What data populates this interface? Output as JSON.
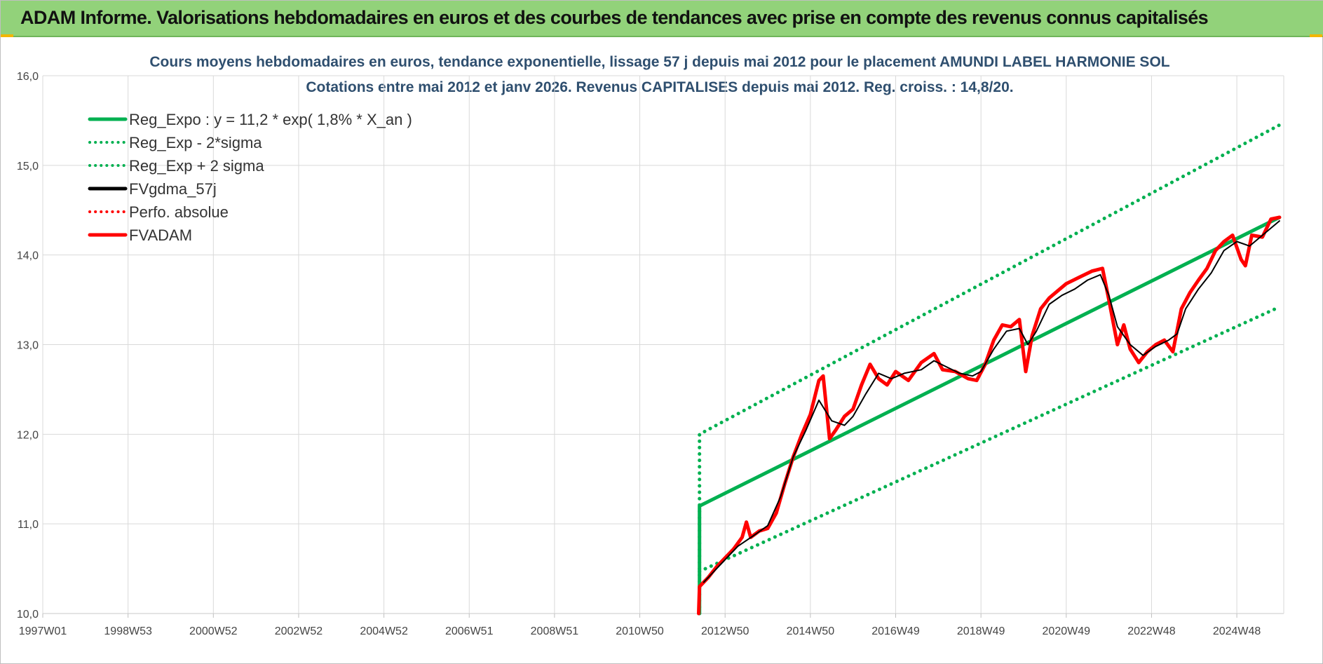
{
  "banner": {
    "title": "ADAM Informe. Valorisations hebdomadaires en euros et des courbes de tendances avec prise en compte des revenus connus capitalisés",
    "color": "#92d27a"
  },
  "chart_data": {
    "type": "line",
    "title": "Cours moyens hebdomadaires en euros, tendance exponentielle, lissage 57 j depuis mai 2012 pour le placement AMUNDI LABEL HARMONIE SOL",
    "subtitle": "Cotations entre mai 2012 et janv 2026. Revenus CAPITALISES depuis mai 2012. Reg. croiss. : 14,8/20.",
    "xlabel": "",
    "ylabel": "",
    "x_tick_labels": [
      "1997W01",
      "1998W53",
      "2000W52",
      "2002W52",
      "2004W52",
      "2006W51",
      "2008W51",
      "2010W50",
      "2012W50",
      "2014W50",
      "2016W49",
      "2018W49",
      "2020W49",
      "2022W48",
      "2024W48"
    ],
    "x_tick_years": [
      1997.0,
      1999.0,
      2001.0,
      2003.0,
      2005.0,
      2007.0,
      2009.0,
      2011.0,
      2013.0,
      2015.0,
      2017.0,
      2019.0,
      2021.0,
      2023.0,
      2025.0
    ],
    "xlim": [
      1997.0,
      2026.1
    ],
    "ylim": [
      10.0,
      16.0
    ],
    "y_ticks": [
      10.0,
      11.0,
      12.0,
      13.0,
      14.0,
      15.0,
      16.0
    ],
    "y_tick_labels": [
      "10,0",
      "11,0",
      "12,0",
      "13,0",
      "14,0",
      "15,0",
      "16,0"
    ],
    "grid": true,
    "legend_position": "top-left",
    "series": [
      {
        "name": "Reg_Expo : y = 11,2 * exp( 1,8% *  X_an )",
        "color": "#00b050",
        "style": "solid",
        "points": [
          [
            2012.4,
            10.0
          ],
          [
            2012.4,
            11.2
          ],
          [
            2026.0,
            14.42
          ]
        ]
      },
      {
        "name": "Reg_Exp - 2*sigma",
        "color": "#00b050",
        "style": "dotted",
        "points": [
          [
            2012.4,
            10.47
          ],
          [
            2026.0,
            13.42
          ]
        ]
      },
      {
        "name": "Reg_Exp + 2 sigma",
        "color": "#00b050",
        "style": "dotted",
        "points": [
          [
            2012.4,
            10.0
          ],
          [
            2012.4,
            12.0
          ],
          [
            2026.0,
            15.45
          ]
        ]
      },
      {
        "name": "FVgdma_57j",
        "color": "#000000",
        "style": "solid",
        "points": [
          [
            2012.5,
            10.35
          ],
          [
            2012.9,
            10.55
          ],
          [
            2013.3,
            10.75
          ],
          [
            2013.7,
            10.88
          ],
          [
            2014.0,
            10.98
          ],
          [
            2014.3,
            11.3
          ],
          [
            2014.6,
            11.75
          ],
          [
            2014.9,
            12.05
          ],
          [
            2015.2,
            12.38
          ],
          [
            2015.5,
            12.15
          ],
          [
            2015.8,
            12.1
          ],
          [
            2016.0,
            12.2
          ],
          [
            2016.3,
            12.45
          ],
          [
            2016.6,
            12.68
          ],
          [
            2016.9,
            12.62
          ],
          [
            2017.2,
            12.68
          ],
          [
            2017.6,
            12.72
          ],
          [
            2017.9,
            12.82
          ],
          [
            2018.2,
            12.75
          ],
          [
            2018.5,
            12.68
          ],
          [
            2018.8,
            12.65
          ],
          [
            2019.0,
            12.7
          ],
          [
            2019.3,
            12.95
          ],
          [
            2019.6,
            13.15
          ],
          [
            2019.9,
            13.18
          ],
          [
            2020.1,
            13.0
          ],
          [
            2020.3,
            13.15
          ],
          [
            2020.6,
            13.45
          ],
          [
            2020.9,
            13.55
          ],
          [
            2021.2,
            13.62
          ],
          [
            2021.5,
            13.72
          ],
          [
            2021.8,
            13.78
          ],
          [
            2022.0,
            13.55
          ],
          [
            2022.2,
            13.2
          ],
          [
            2022.5,
            13.0
          ],
          [
            2022.8,
            12.88
          ],
          [
            2023.1,
            12.98
          ],
          [
            2023.4,
            13.05
          ],
          [
            2023.6,
            13.12
          ],
          [
            2023.8,
            13.4
          ],
          [
            2024.1,
            13.62
          ],
          [
            2024.4,
            13.8
          ],
          [
            2024.7,
            14.05
          ],
          [
            2025.0,
            14.15
          ],
          [
            2025.3,
            14.1
          ],
          [
            2025.6,
            14.22
          ],
          [
            2026.0,
            14.38
          ]
        ]
      },
      {
        "name": "Perfo. absolue",
        "color": "#ff0000",
        "style": "dotted",
        "points": []
      },
      {
        "name": "FVADAM",
        "color": "#ff0000",
        "style": "solid",
        "points": [
          [
            2012.38,
            10.0
          ],
          [
            2012.4,
            10.3
          ],
          [
            2012.6,
            10.4
          ],
          [
            2012.8,
            10.52
          ],
          [
            2013.0,
            10.62
          ],
          [
            2013.2,
            10.72
          ],
          [
            2013.4,
            10.85
          ],
          [
            2013.5,
            11.02
          ],
          [
            2013.6,
            10.85
          ],
          [
            2013.8,
            10.92
          ],
          [
            2014.0,
            10.95
          ],
          [
            2014.2,
            11.12
          ],
          [
            2014.4,
            11.45
          ],
          [
            2014.6,
            11.75
          ],
          [
            2014.8,
            12.0
          ],
          [
            2015.0,
            12.22
          ],
          [
            2015.2,
            12.6
          ],
          [
            2015.3,
            12.65
          ],
          [
            2015.45,
            11.95
          ],
          [
            2015.6,
            12.05
          ],
          [
            2015.8,
            12.2
          ],
          [
            2016.0,
            12.28
          ],
          [
            2016.2,
            12.55
          ],
          [
            2016.4,
            12.78
          ],
          [
            2016.6,
            12.62
          ],
          [
            2016.8,
            12.55
          ],
          [
            2017.0,
            12.7
          ],
          [
            2017.3,
            12.6
          ],
          [
            2017.6,
            12.8
          ],
          [
            2017.9,
            12.9
          ],
          [
            2018.1,
            12.72
          ],
          [
            2018.4,
            12.7
          ],
          [
            2018.7,
            12.62
          ],
          [
            2018.9,
            12.6
          ],
          [
            2019.1,
            12.78
          ],
          [
            2019.3,
            13.05
          ],
          [
            2019.5,
            13.22
          ],
          [
            2019.7,
            13.2
          ],
          [
            2019.9,
            13.28
          ],
          [
            2020.05,
            12.7
          ],
          [
            2020.2,
            13.1
          ],
          [
            2020.4,
            13.4
          ],
          [
            2020.6,
            13.52
          ],
          [
            2020.8,
            13.6
          ],
          [
            2021.0,
            13.68
          ],
          [
            2021.3,
            13.75
          ],
          [
            2021.6,
            13.82
          ],
          [
            2021.85,
            13.85
          ],
          [
            2022.0,
            13.5
          ],
          [
            2022.2,
            13.0
          ],
          [
            2022.35,
            13.22
          ],
          [
            2022.5,
            12.95
          ],
          [
            2022.7,
            12.8
          ],
          [
            2022.9,
            12.92
          ],
          [
            2023.1,
            13.0
          ],
          [
            2023.3,
            13.05
          ],
          [
            2023.5,
            12.92
          ],
          [
            2023.7,
            13.4
          ],
          [
            2023.9,
            13.58
          ],
          [
            2024.1,
            13.72
          ],
          [
            2024.3,
            13.85
          ],
          [
            2024.5,
            14.05
          ],
          [
            2024.7,
            14.15
          ],
          [
            2024.9,
            14.22
          ],
          [
            2025.1,
            13.95
          ],
          [
            2025.2,
            13.88
          ],
          [
            2025.35,
            14.22
          ],
          [
            2025.6,
            14.2
          ],
          [
            2025.8,
            14.4
          ],
          [
            2026.0,
            14.42
          ]
        ]
      }
    ]
  }
}
